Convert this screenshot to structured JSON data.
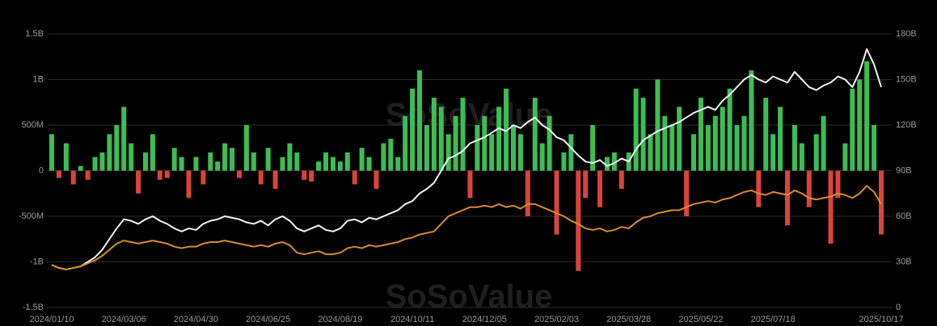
{
  "chart_data": {
    "type": "bar-line",
    "watermark": "SoSoValue",
    "categories": [
      "2024/01/10",
      null,
      null,
      null,
      null,
      null,
      null,
      null,
      null,
      null,
      "2024/03/06",
      null,
      null,
      null,
      null,
      null,
      null,
      null,
      null,
      null,
      "2024/04/30",
      null,
      null,
      null,
      null,
      null,
      null,
      null,
      null,
      null,
      "2024/06/25",
      null,
      null,
      null,
      null,
      null,
      null,
      null,
      null,
      null,
      "2024/08/19",
      null,
      null,
      null,
      null,
      null,
      null,
      null,
      null,
      null,
      "2024/10/11",
      null,
      null,
      null,
      null,
      null,
      null,
      null,
      null,
      null,
      "2024/12/05",
      null,
      null,
      null,
      null,
      null,
      null,
      null,
      null,
      null,
      "2025/02/03",
      null,
      null,
      null,
      null,
      null,
      null,
      null,
      null,
      null,
      "2025/03/28",
      null,
      null,
      null,
      null,
      null,
      null,
      null,
      null,
      null,
      "2025/05/22",
      null,
      null,
      null,
      null,
      null,
      null,
      null,
      null,
      null,
      "2025/07/18",
      null,
      null,
      null,
      null,
      null,
      null,
      null,
      null,
      null,
      null,
      null,
      null,
      null,
      null,
      "2025/10/17"
    ],
    "ylim": [
      -1500,
      1500
    ],
    "yticks": [
      {
        "value": -1500,
        "label": "-1.5B"
      },
      {
        "value": -1000,
        "label": "-1B"
      },
      {
        "value": -500,
        "label": "-500M"
      },
      0,
      {
        "value": 500,
        "label": "500M"
      },
      {
        "value": 1000,
        "label": "1B"
      },
      {
        "value": 1500,
        "label": "1.5B"
      }
    ],
    "y2lim": [
      0,
      180
    ],
    "y2ticks": [
      0,
      {
        "value": 30,
        "label": "30B"
      },
      {
        "value": 60,
        "label": "60B"
      },
      {
        "value": 90,
        "label": "90B"
      },
      {
        "value": 120,
        "label": "120B"
      },
      {
        "value": 150,
        "label": "150B"
      },
      {
        "value": 180,
        "label": "180B"
      }
    ],
    "grid": true,
    "bar_colors": {
      "positive": "#3dbd55",
      "negative": "#d9443a"
    },
    "bars": [
      400,
      -80,
      300,
      -150,
      50,
      -100,
      150,
      200,
      400,
      500,
      700,
      300,
      -250,
      200,
      400,
      -100,
      -80,
      250,
      150,
      -300,
      150,
      -150,
      200,
      100,
      300,
      250,
      -80,
      500,
      200,
      -150,
      250,
      -200,
      150,
      300,
      200,
      -100,
      -120,
      100,
      200,
      150,
      100,
      200,
      -150,
      250,
      150,
      -200,
      300,
      350,
      150,
      600,
      900,
      1100,
      500,
      800,
      700,
      400,
      600,
      800,
      -300,
      500,
      600,
      400,
      700,
      900,
      500,
      400,
      -500,
      800,
      300,
      600,
      -700,
      200,
      400,
      -1100,
      -300,
      500,
      -400,
      150,
      200,
      -200,
      200,
      900,
      800,
      400,
      1000,
      600,
      500,
      700,
      -500,
      400,
      800,
      500,
      600,
      700,
      900,
      500,
      600,
      1100,
      -400,
      800,
      400,
      700,
      -600,
      500,
      300,
      -400,
      400,
      600,
      -800,
      -300,
      300,
      900,
      1000,
      1200,
      500,
      -700
    ],
    "series": [
      {
        "color": "#f2f2f2",
        "axis": "y2",
        "values": [
          28,
          26,
          25,
          26,
          27,
          30,
          33,
          38,
          45,
          52,
          58,
          57,
          55,
          58,
          60,
          57,
          55,
          52,
          50,
          52,
          51,
          55,
          57,
          58,
          60,
          59,
          58,
          56,
          55,
          57,
          54,
          58,
          60,
          57,
          52,
          50,
          52,
          54,
          51,
          50,
          52,
          57,
          58,
          56,
          59,
          58,
          60,
          62,
          64,
          68,
          70,
          75,
          78,
          82,
          90,
          98,
          100,
          103,
          108,
          110,
          112,
          115,
          118,
          116,
          120,
          118,
          122,
          125,
          120,
          117,
          112,
          110,
          105,
          100,
          96,
          95,
          97,
          93,
          95,
          98,
          96,
          104,
          110,
          113,
          116,
          118,
          120,
          122,
          125,
          128,
          130,
          132,
          130,
          136,
          140,
          145,
          150,
          153,
          150,
          148,
          152,
          150,
          148,
          155,
          150,
          145,
          143,
          146,
          148,
          152,
          150,
          145,
          155,
          170,
          160,
          145
        ]
      },
      {
        "color": "#d98b2b",
        "axis": "y2",
        "values": [
          28,
          26,
          25,
          26,
          27,
          29,
          31,
          34,
          38,
          42,
          44,
          43,
          42,
          43,
          44,
          43,
          42,
          40,
          39,
          40,
          40,
          42,
          43,
          43,
          44,
          43,
          42,
          41,
          40,
          41,
          40,
          42,
          43,
          41,
          36,
          35,
          36,
          37,
          35,
          35,
          36,
          39,
          40,
          39,
          41,
          40,
          41,
          42,
          43,
          45,
          46,
          48,
          49,
          50,
          55,
          60,
          62,
          64,
          66,
          66,
          67,
          66,
          68,
          66,
          67,
          65,
          68,
          68,
          66,
          64,
          62,
          60,
          57,
          55,
          52,
          51,
          52,
          50,
          51,
          53,
          52,
          56,
          59,
          60,
          62,
          63,
          64,
          64,
          66,
          68,
          69,
          70,
          69,
          71,
          72,
          74,
          76,
          77,
          75,
          74,
          76,
          75,
          74,
          77,
          75,
          72,
          71,
          72,
          73,
          75,
          74,
          72,
          75,
          80,
          76,
          68
        ]
      }
    ]
  }
}
